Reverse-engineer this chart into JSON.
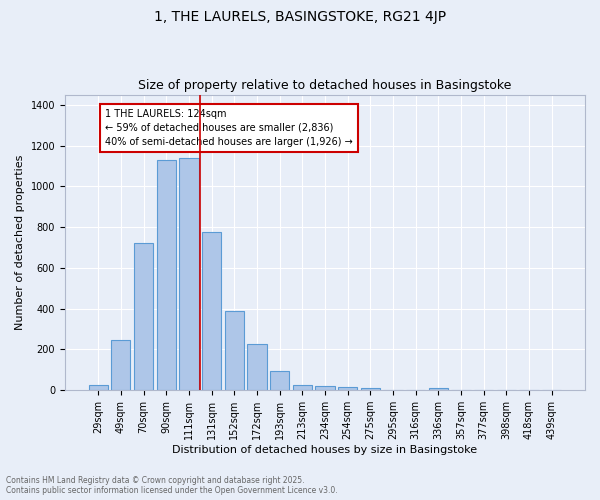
{
  "title1": "1, THE LAURELS, BASINGSTOKE, RG21 4JP",
  "title2": "Size of property relative to detached houses in Basingstoke",
  "xlabel": "Distribution of detached houses by size in Basingstoke",
  "ylabel": "Number of detached properties",
  "categories": [
    "29sqm",
    "49sqm",
    "70sqm",
    "90sqm",
    "111sqm",
    "131sqm",
    "152sqm",
    "172sqm",
    "193sqm",
    "213sqm",
    "234sqm",
    "254sqm",
    "275sqm",
    "295sqm",
    "316sqm",
    "336sqm",
    "357sqm",
    "377sqm",
    "398sqm",
    "418sqm",
    "439sqm"
  ],
  "values": [
    25,
    248,
    720,
    1130,
    1140,
    775,
    388,
    228,
    93,
    28,
    20,
    15,
    13,
    0,
    0,
    10,
    0,
    0,
    0,
    0,
    0
  ],
  "bar_color": "#aec6e8",
  "bar_edge_color": "#5b9bd5",
  "annotation_text": "1 THE LAURELS: 124sqm\n← 59% of detached houses are smaller (2,836)\n40% of semi-detached houses are larger (1,926) →",
  "annotation_box_color": "#ffffff",
  "annotation_box_edge_color": "#cc0000",
  "vline_color": "#cc0000",
  "ylim": [
    0,
    1450
  ],
  "yticks": [
    0,
    200,
    400,
    600,
    800,
    1000,
    1200,
    1400
  ],
  "footer1": "Contains HM Land Registry data © Crown copyright and database right 2025.",
  "footer2": "Contains public sector information licensed under the Open Government Licence v3.0.",
  "bg_color": "#e8eef8",
  "plot_bg_color": "#e8eef8",
  "grid_color": "#ffffff",
  "title1_fontsize": 10,
  "title2_fontsize": 9,
  "axis_label_fontsize": 8,
  "tick_fontsize": 7,
  "annot_fontsize": 7
}
